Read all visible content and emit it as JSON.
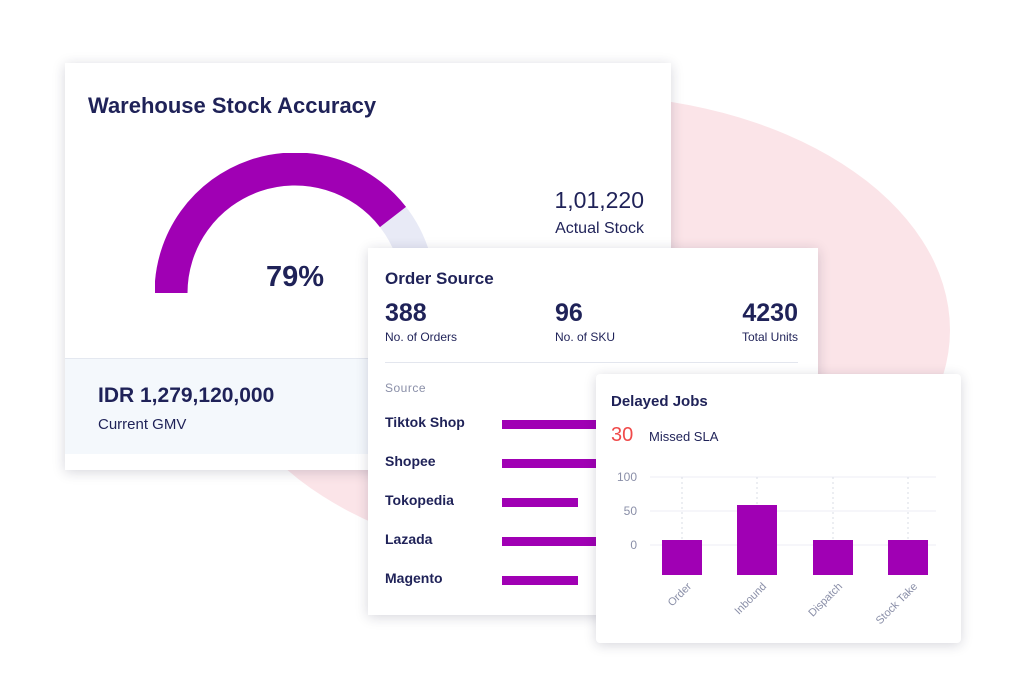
{
  "accuracy_card": {
    "title": "Warehouse Stock Accuracy",
    "percent_label": "79%",
    "percent_value": 0.79,
    "actual_stock_value": "1,01,220",
    "actual_stock_label": "Actual Stock",
    "gmv_value": "IDR 1,279,120,000",
    "gmv_label": "Current GMV",
    "colors": {
      "gauge_fill": "#a000b4",
      "gauge_track": "#e8eaf6"
    }
  },
  "order_card": {
    "title": "Order Source",
    "stats": [
      {
        "value": "388",
        "label": "No. of Orders"
      },
      {
        "value": "96",
        "label": "No. of SKU"
      },
      {
        "value": "4230",
        "label": "Total Units"
      }
    ],
    "source_header": "Source",
    "sources": [
      {
        "label": "Tiktok Shop"
      },
      {
        "label": "Shopee"
      },
      {
        "label": "Tokopedia"
      },
      {
        "label": "Lazada"
      },
      {
        "label": "Magento"
      }
    ],
    "colors": {
      "bar": "#a000b4"
    }
  },
  "delayed_card": {
    "title": "Delayed Jobs",
    "missed_count": "30",
    "missed_label": "Missed SLA"
  },
  "chart_data": {
    "type": "bar",
    "categories": [
      "Order",
      "Inbound",
      "Dispatch",
      "Stock Take"
    ],
    "values": [
      0,
      50,
      0,
      0
    ],
    "yticks": [
      "100",
      "50",
      "0"
    ],
    "grid": true,
    "color": "#a000b4"
  }
}
